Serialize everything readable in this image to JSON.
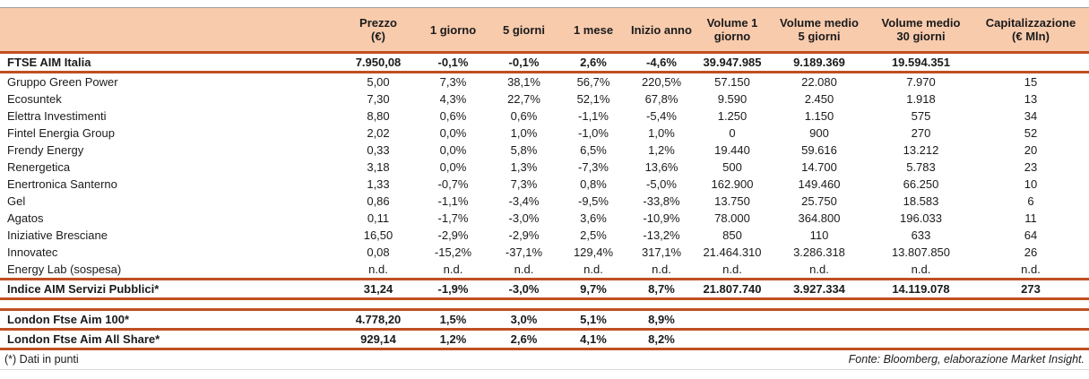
{
  "colors": {
    "accent": "#C04F21",
    "header_bg": "#F8CBAD"
  },
  "table": {
    "columns": [
      "",
      "Prezzo\n(€)",
      "1 giorno",
      "5 giorni",
      "1 mese",
      "Inizio anno",
      "Volume 1\ngiorno",
      "Volume medio\n5 giorni",
      "Volume medio\n30 giorni",
      "Capitalizzazione\n(€ Mln)"
    ],
    "rows": [
      {
        "type": "index",
        "name": "FTSE AIM Italia",
        "values": [
          "7.950,08",
          "-0,1%",
          "-0,1%",
          "2,6%",
          "-4,6%",
          "39.947.985",
          "9.189.369",
          "19.594.351",
          ""
        ]
      },
      {
        "type": "stock",
        "name": "Gruppo Green Power",
        "values": [
          "5,00",
          "7,3%",
          "38,1%",
          "56,7%",
          "220,5%",
          "57.150",
          "22.080",
          "7.970",
          "15"
        ]
      },
      {
        "type": "stock",
        "name": "Ecosuntek",
        "values": [
          "7,30",
          "4,3%",
          "22,7%",
          "52,1%",
          "67,8%",
          "9.590",
          "2.450",
          "1.918",
          "13"
        ]
      },
      {
        "type": "stock",
        "name": "Elettra Investimenti",
        "values": [
          "8,80",
          "0,6%",
          "0,6%",
          "-1,1%",
          "-5,4%",
          "1.250",
          "1.150",
          "575",
          "34"
        ]
      },
      {
        "type": "stock",
        "name": "Fintel Energia Group",
        "values": [
          "2,02",
          "0,0%",
          "1,0%",
          "-1,0%",
          "1,0%",
          "0",
          "900",
          "270",
          "52"
        ]
      },
      {
        "type": "stock",
        "name": "Frendy Energy",
        "values": [
          "0,33",
          "0,0%",
          "5,8%",
          "6,5%",
          "1,2%",
          "19.440",
          "59.616",
          "13.212",
          "20"
        ]
      },
      {
        "type": "stock",
        "name": "Renergetica",
        "values": [
          "3,18",
          "0,0%",
          "1,3%",
          "-7,3%",
          "13,6%",
          "500",
          "14.700",
          "5.783",
          "23"
        ]
      },
      {
        "type": "stock",
        "name": "Enertronica Santerno",
        "values": [
          "1,33",
          "-0,7%",
          "7,3%",
          "0,8%",
          "-5,0%",
          "162.900",
          "149.460",
          "66.250",
          "10"
        ]
      },
      {
        "type": "stock",
        "name": "Gel",
        "values": [
          "0,86",
          "-1,1%",
          "-3,4%",
          "-9,5%",
          "-33,8%",
          "13.750",
          "25.750",
          "18.583",
          "6"
        ]
      },
      {
        "type": "stock",
        "name": "Agatos",
        "values": [
          "0,11",
          "-1,7%",
          "-3,0%",
          "3,6%",
          "-10,9%",
          "78.000",
          "364.800",
          "196.033",
          "11"
        ]
      },
      {
        "type": "stock",
        "name": "Iniziative Bresciane",
        "values": [
          "16,50",
          "-2,9%",
          "-2,9%",
          "2,5%",
          "-13,2%",
          "850",
          "110",
          "633",
          "64"
        ]
      },
      {
        "type": "stock",
        "name": "Innovatec",
        "values": [
          "0,08",
          "-15,2%",
          "-37,1%",
          "129,4%",
          "317,1%",
          "21.464.310",
          "3.286.318",
          "13.807.850",
          "26"
        ]
      },
      {
        "type": "stock",
        "name": "Energy Lab (sospesa)",
        "values": [
          "n.d.",
          "n.d.",
          "n.d.",
          "n.d.",
          "n.d.",
          "n.d.",
          "n.d.",
          "n.d.",
          "n.d."
        ]
      },
      {
        "type": "index",
        "name": "Indice AIM Servizi Pubblici*",
        "values": [
          "31,24",
          "-1,9%",
          "-3,0%",
          "9,7%",
          "8,7%",
          "21.807.740",
          "3.927.334",
          "14.119.078",
          "273"
        ]
      },
      {
        "type": "spacer",
        "name": "",
        "values": []
      },
      {
        "type": "index",
        "name": "London Ftse Aim 100*",
        "values": [
          "4.778,20",
          "1,5%",
          "3,0%",
          "5,1%",
          "8,9%",
          "",
          "",
          "",
          ""
        ]
      },
      {
        "type": "index",
        "name": "London Ftse Aim All Share*",
        "values": [
          "929,14",
          "1,2%",
          "2,6%",
          "4,1%",
          "8,2%",
          "",
          "",
          "",
          ""
        ]
      }
    ]
  },
  "footer": {
    "note": "(*) Dati in punti",
    "source": "Fonte: Bloomberg, elaborazione Market Insight."
  }
}
